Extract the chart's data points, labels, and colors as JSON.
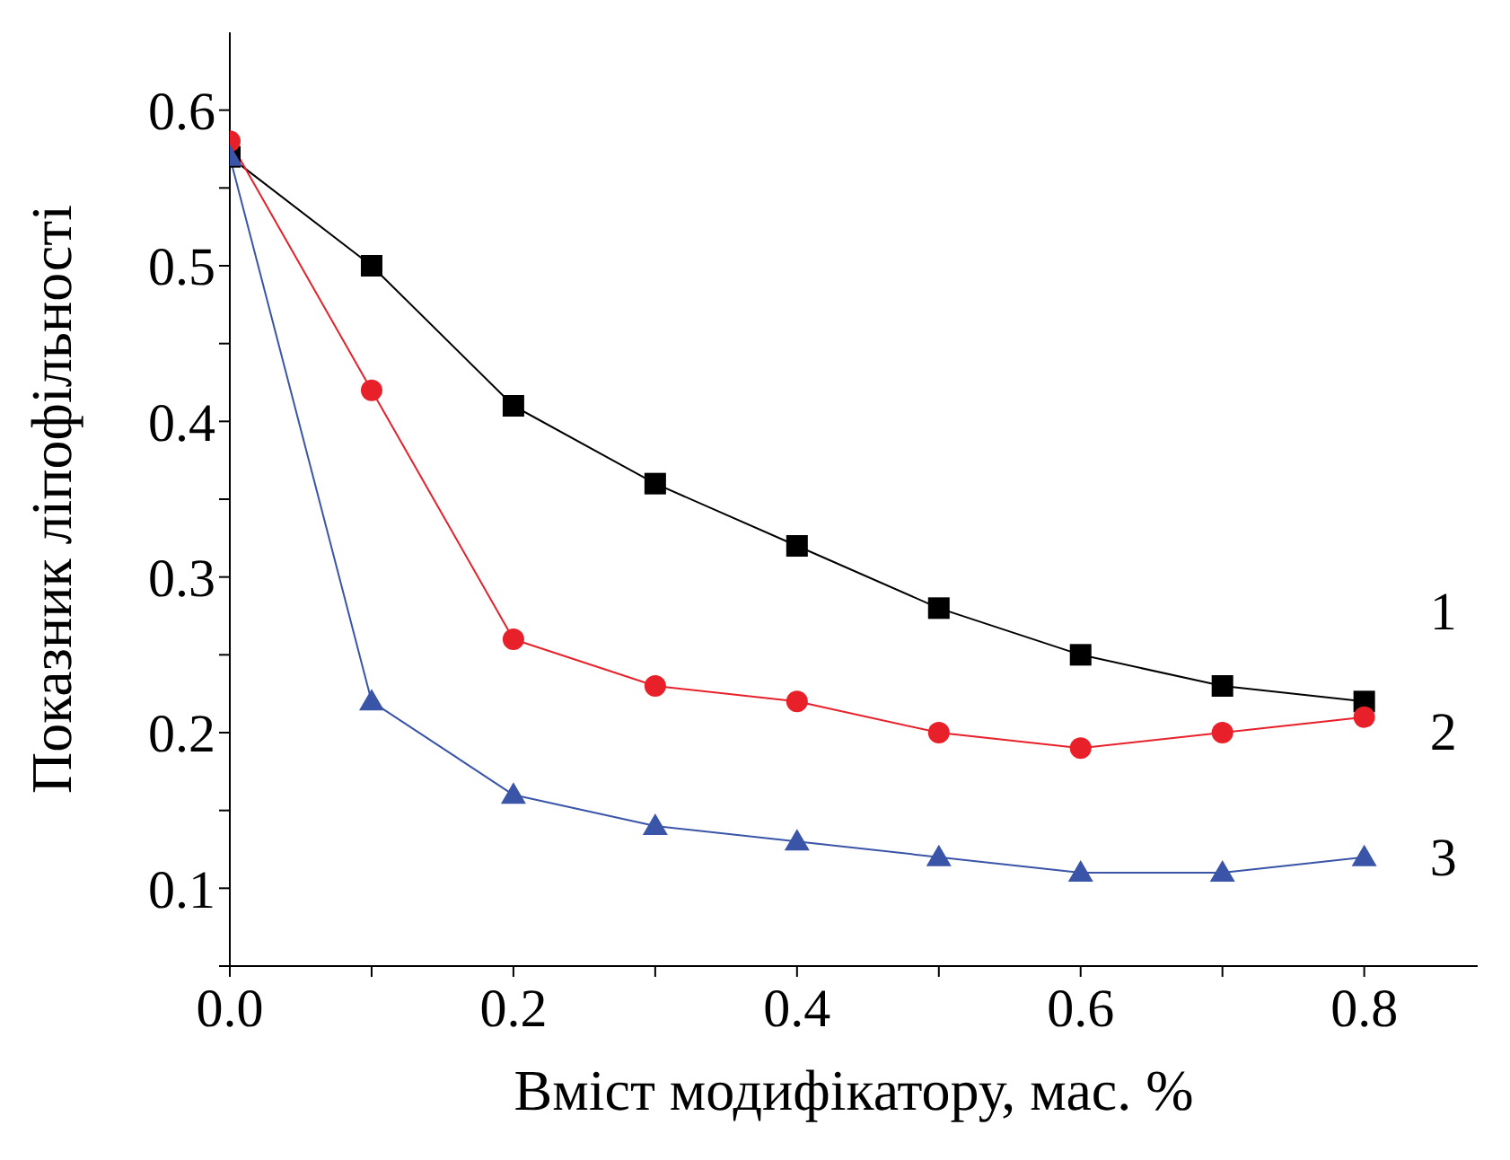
{
  "chart_data": {
    "type": "line",
    "xlabel": "Вміст модифікатору, мас. %",
    "ylabel": "Показник ліпофільності",
    "x": [
      0,
      0.1,
      0.2,
      0.3,
      0.4,
      0.5,
      0.6,
      0.7,
      0.8
    ],
    "xlim": [
      0,
      0.88
    ],
    "xticks": [
      {
        "value": 0,
        "label": "0.0"
      },
      {
        "value": 0.1,
        "label": null
      },
      {
        "value": 0.2,
        "label": "0.2"
      },
      {
        "value": 0.3,
        "label": null
      },
      {
        "value": 0.4,
        "label": "0.4"
      },
      {
        "value": 0.5,
        "label": null
      },
      {
        "value": 0.6,
        "label": "0.6"
      },
      {
        "value": 0.7,
        "label": null
      },
      {
        "value": 0.8,
        "label": "0.8"
      }
    ],
    "ylim": [
      0.05,
      0.65
    ],
    "yticks": [
      {
        "value": 0.05,
        "label": null
      },
      {
        "value": 0.1,
        "label": "0.1"
      },
      {
        "value": 0.15,
        "label": null
      },
      {
        "value": 0.2,
        "label": "0.2"
      },
      {
        "value": 0.25,
        "label": null
      },
      {
        "value": 0.3,
        "label": "0.3"
      },
      {
        "value": 0.35,
        "label": null
      },
      {
        "value": 0.4,
        "label": "0.4"
      },
      {
        "value": 0.45,
        "label": null
      },
      {
        "value": 0.5,
        "label": "0.5"
      },
      {
        "value": 0.55,
        "label": null
      },
      {
        "value": 0.6,
        "label": "0.6"
      }
    ],
    "grid": false,
    "legend": false,
    "line_style": "solid",
    "series": [
      {
        "name": "1",
        "color": "#000000",
        "marker": "square",
        "values": [
          0.57,
          0.5,
          0.41,
          0.36,
          0.32,
          0.28,
          0.25,
          0.23,
          0.22
        ]
      },
      {
        "name": "2",
        "color": "#e8202a",
        "marker": "circle",
        "values": [
          0.58,
          0.42,
          0.26,
          0.23,
          0.22,
          0.2,
          0.19,
          0.2,
          0.21
        ]
      },
      {
        "name": "3",
        "color": "#3a55a8",
        "marker": "triangle",
        "values": [
          0.57,
          0.22,
          0.16,
          0.14,
          0.13,
          0.12,
          0.11,
          0.11,
          0.12
        ]
      }
    ]
  }
}
